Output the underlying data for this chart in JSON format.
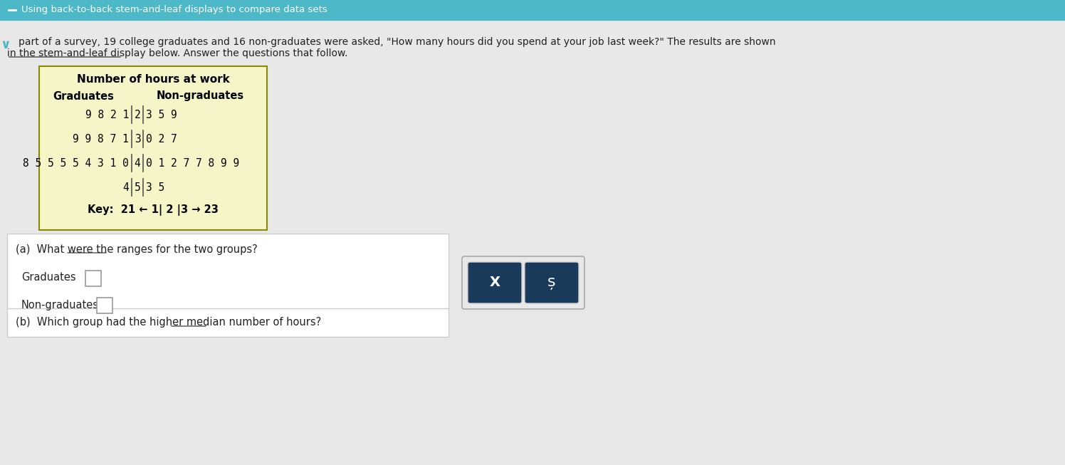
{
  "title_bar_text": "Using back-to-back stem-and-leaf displays to compare data sets",
  "title_bar_color": "#4db8c8",
  "title_bar_text_color": "#ffffff",
  "body_bg_color": "#e8e8e8",
  "intro_text": "part of a survey, 19 college graduates and 16 non-graduates were asked, \"How many hours did you spend at your job last week?\" The results are shown\nin the stem-and-leaf display below. Answer the questions that follow.",
  "table_title": "Number of hours at work",
  "table_bg_color": "#f5f5c8",
  "table_border_color": "#8a8a00",
  "col_header_left": "Graduates",
  "col_header_right": "Non-graduates",
  "rows": [
    {
      "stem": "2",
      "left_leaves": "9 8 2 1",
      "right_leaves": "3 5 9"
    },
    {
      "stem": "3",
      "left_leaves": "9 9 8 7 1",
      "right_leaves": "0 2 7"
    },
    {
      "stem": "4",
      "left_leaves": "8 5 5 5 5 4 3 1 0",
      "right_leaves": "0 1 2 7 7 8 9 9"
    },
    {
      "stem": "5",
      "left_leaves": "4",
      "right_leaves": "3 5"
    }
  ],
  "key_text": "Key:  21 ← 1| 2 |3 → 23",
  "qa_box_bg": "#ffffff",
  "qa_box_border": "#cccccc",
  "question_a": "(a)  What were the ranges for the two groups?",
  "label_graduates": "Graduates",
  "label_non_graduates": "Non-graduates",
  "question_b": "(b)  Which group had the higher median number of hours?",
  "button_bg": "#1a3a5c",
  "button_x_text": "X",
  "button_s_text": "ș",
  "underline_words_intro": [
    "stem-and-leaf display"
  ],
  "underline_words_a": [
    "ranges"
  ],
  "underline_words_b": [
    "median"
  ],
  "chevron_color": "#4db8c8",
  "input_box_color": "#d0d0d0"
}
